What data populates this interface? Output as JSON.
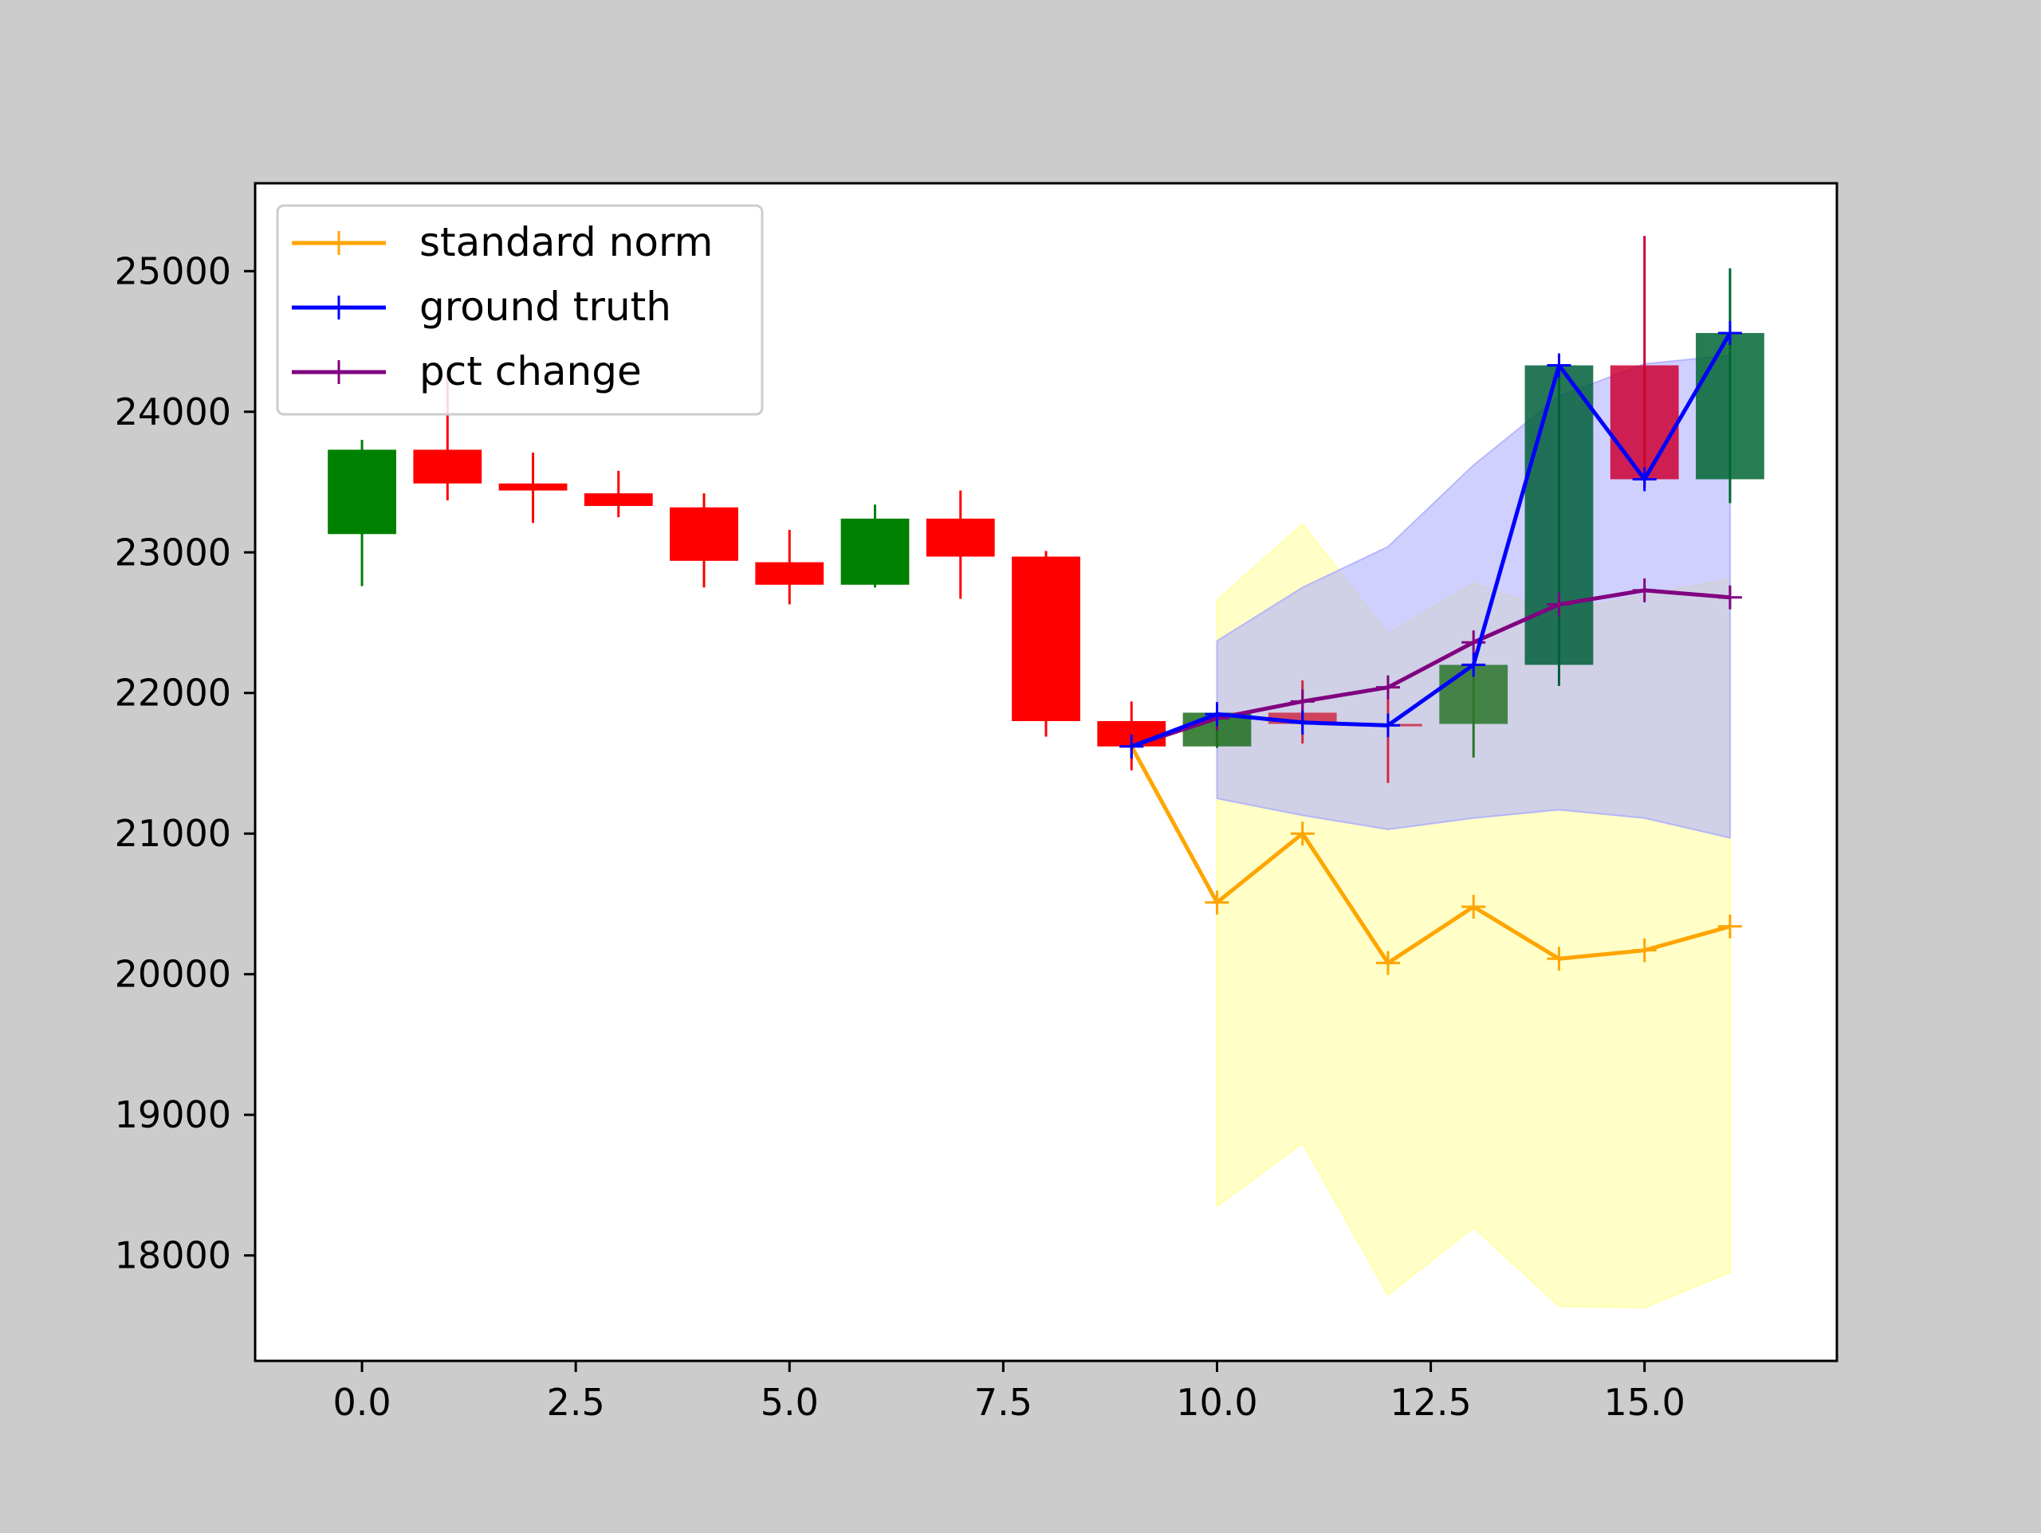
{
  "chart_data": {
    "type": "candlestick",
    "title": "",
    "xlabel": "",
    "ylabel": "",
    "xlim": [
      -1.25,
      17.25
    ],
    "ylim": [
      17250,
      25625
    ],
    "x_ticks": [
      0.0,
      2.5,
      5.0,
      7.5,
      10.0,
      12.5,
      15.0
    ],
    "x_tick_labels": [
      "0.0",
      "2.5",
      "5.0",
      "7.5",
      "10.0",
      "12.5",
      "15.0"
    ],
    "y_ticks": [
      18000,
      19000,
      20000,
      21000,
      22000,
      23000,
      24000,
      25000
    ],
    "y_tick_labels": [
      "18000",
      "19000",
      "20000",
      "21000",
      "22000",
      "23000",
      "24000",
      "25000"
    ],
    "grid": false,
    "legend_position": "upper-left",
    "legend": [
      {
        "name": "standard norm",
        "color": "#ffa500"
      },
      {
        "name": "ground truth",
        "color": "#0000ff"
      },
      {
        "name": "pct change",
        "color": "#800080"
      }
    ],
    "candles": [
      {
        "x": 0,
        "open": 23130,
        "close": 23730,
        "high": 23800,
        "low": 22760,
        "color": "#008000"
      },
      {
        "x": 1,
        "open": 23730,
        "close": 23490,
        "high": 24250,
        "low": 23370,
        "color": "#ff0000"
      },
      {
        "x": 2,
        "open": 23490,
        "close": 23440,
        "high": 23710,
        "low": 23210,
        "color": "#ff0000"
      },
      {
        "x": 3,
        "open": 23420,
        "close": 23330,
        "high": 23580,
        "low": 23250,
        "color": "#ff0000"
      },
      {
        "x": 4,
        "open": 23320,
        "close": 22940,
        "high": 23420,
        "low": 22750,
        "color": "#ff0000"
      },
      {
        "x": 5,
        "open": 22930,
        "close": 22770,
        "high": 23160,
        "low": 22630,
        "color": "#ff0000"
      },
      {
        "x": 6,
        "open": 22770,
        "close": 23240,
        "high": 23340,
        "low": 22750,
        "color": "#008000"
      },
      {
        "x": 7,
        "open": 23240,
        "close": 22970,
        "high": 23440,
        "low": 22670,
        "color": "#ff0000"
      },
      {
        "x": 8,
        "open": 22970,
        "close": 21800,
        "high": 23010,
        "low": 21690,
        "color": "#ff0000"
      },
      {
        "x": 9,
        "open": 21800,
        "close": 21620,
        "high": 21940,
        "low": 21450,
        "color": "#ff0000"
      },
      {
        "x": 10,
        "open": 21620,
        "close": 21860,
        "high": 21880,
        "low": 21610,
        "color": "#1e6e1e"
      },
      {
        "x": 11,
        "open": 21860,
        "close": 21780,
        "high": 22090,
        "low": 21640,
        "color": "#d02a45"
      },
      {
        "x": 12,
        "open": 21780,
        "close": 21770,
        "high": 22010,
        "low": 21360,
        "color": "#d02a45"
      },
      {
        "x": 13,
        "open": 21780,
        "close": 22200,
        "high": 22200,
        "low": 21540,
        "color": "#2b752b"
      },
      {
        "x": 14,
        "open": 22200,
        "close": 24330,
        "high": 24330,
        "low": 22050,
        "color": "#005f3a"
      },
      {
        "x": 15,
        "open": 24330,
        "close": 23520,
        "high": 25250,
        "low": 23460,
        "color": "#cc0033"
      },
      {
        "x": 16,
        "open": 23520,
        "close": 24560,
        "high": 25020,
        "low": 23350,
        "color": "#006633"
      }
    ],
    "series": [
      {
        "name": "standard norm",
        "color": "#ffa500",
        "x": [
          9,
          10,
          11,
          12,
          13,
          14,
          15,
          16
        ],
        "values": [
          21620,
          20510,
          21000,
          20080,
          20480,
          20110,
          20170,
          20340
        ],
        "band_upper": [
          21620,
          22660,
          23200,
          22420,
          22780,
          22570,
          22700,
          22810
        ],
        "band_lower": [
          21620,
          18350,
          18800,
          17720,
          18200,
          17640,
          17630,
          17880
        ],
        "band_color": "#ffff99"
      },
      {
        "name": "ground truth",
        "color": "#0000ff",
        "x": [
          9,
          10,
          11,
          12,
          13,
          14,
          15,
          16
        ],
        "values": [
          21620,
          21850,
          21790,
          21770,
          22200,
          24330,
          23520,
          24560
        ]
      },
      {
        "name": "pct change",
        "color": "#800080",
        "x": [
          9,
          10,
          11,
          12,
          13,
          14,
          15,
          16
        ],
        "values": [
          21620,
          21820,
          21940,
          22040,
          22360,
          22630,
          22730,
          22680
        ],
        "band_upper": [
          21620,
          22370,
          22750,
          23040,
          23620,
          24110,
          24340,
          24400
        ],
        "band_lower": [
          21620,
          21250,
          21130,
          21030,
          21110,
          21170,
          21110,
          20970
        ],
        "band_color": "#aaaaff"
      }
    ]
  }
}
